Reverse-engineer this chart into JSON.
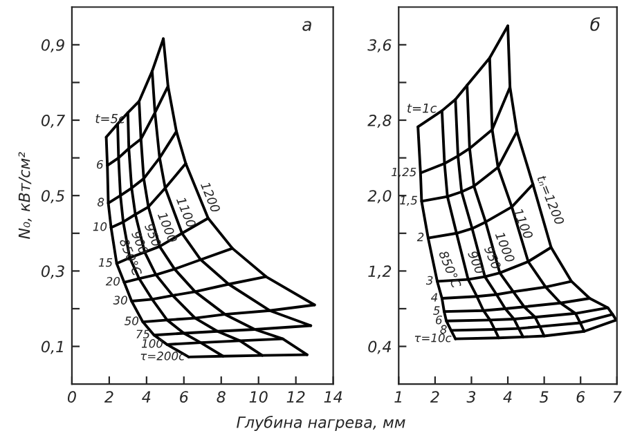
{
  "chart_data": [
    {
      "type": "line",
      "xlabel": "Глубина нагрева, мм",
      "ylabel": "N₀, кВт/см²",
      "xlim": [
        0,
        14
      ],
      "ylim": [
        0,
        1.0
      ],
      "xticks": [
        0,
        2,
        4,
        6,
        8,
        10,
        12,
        14
      ],
      "yticks": [
        {
          "value": 0.1,
          "label": "0,1"
        },
        {
          "value": 0.2,
          "label": null
        },
        {
          "value": 0.3,
          "label": "0,3"
        },
        {
          "value": 0.4,
          "label": null
        },
        {
          "value": 0.5,
          "label": "0,5"
        },
        {
          "value": 0.6,
          "label": null
        },
        {
          "value": 0.7,
          "label": "0,7"
        },
        {
          "value": 0.8,
          "label": null
        },
        {
          "value": 0.9,
          "label": "0,9"
        }
      ],
      "grid": false,
      "line_style": "solid",
      "marker": "none",
      "annotations": [
        "а",
        {
          "text": "850°C",
          "x": 2.25,
          "y": 0.37
        },
        {
          "text": "900",
          "x": 2.9,
          "y": 0.39
        },
        {
          "text": "950",
          "x": 3.6,
          "y": 0.41
        },
        {
          "text": "1000",
          "x": 4.3,
          "y": 0.44
        },
        {
          "text": "1100",
          "x": 5.3,
          "y": 0.48
        },
        {
          "text": "1200",
          "x": 6.6,
          "y": 0.52
        }
      ],
      "series": [
        {
          "color": "#000000",
          "x": [
            1.84,
            1.9,
            1.95,
            2.1,
            2.4,
            2.8,
            3.2,
            3.8,
            4.4,
            5.1,
            6.26
          ],
          "values": [
            0.655,
            0.58,
            0.48,
            0.415,
            0.32,
            0.27,
            0.22,
            0.165,
            0.13,
            0.105,
            0.072
          ]
        },
        {
          "color": "#000000",
          "x": [
            2.45,
            2.5,
            2.6,
            2.75,
            3.1,
            3.6,
            4.3,
            5.1,
            6.0,
            6.9,
            8.1
          ],
          "values": [
            0.69,
            0.6,
            0.5,
            0.43,
            0.335,
            0.28,
            0.225,
            0.17,
            0.135,
            0.11,
            0.074
          ]
        },
        {
          "color": "#000000",
          "x": [
            3.0,
            3.05,
            3.2,
            3.4,
            3.9,
            4.5,
            5.4,
            6.6,
            7.8,
            9.0,
            10.2
          ],
          "values": [
            0.72,
            0.625,
            0.52,
            0.45,
            0.35,
            0.29,
            0.235,
            0.175,
            0.14,
            0.115,
            0.076
          ]
        },
        {
          "color": "#000000",
          "x": [
            3.6,
            3.7,
            3.85,
            4.1,
            4.7,
            5.5,
            6.6,
            8.2,
            9.8,
            11.3,
            12.6
          ],
          "values": [
            0.75,
            0.65,
            0.545,
            0.47,
            0.365,
            0.305,
            0.245,
            0.185,
            0.145,
            0.12,
            0.078
          ]
        },
        {
          "color": "#000000",
          "x": [
            4.3,
            4.45,
            4.7,
            5.0,
            5.9,
            6.9,
            8.4,
            10.6,
            12.8
          ],
          "values": [
            0.83,
            0.72,
            0.6,
            0.52,
            0.4,
            0.33,
            0.265,
            0.195,
            0.155
          ]
        },
        {
          "color": "#000000",
          "x": [
            4.9,
            5.15,
            5.6,
            6.1,
            7.3,
            8.6,
            10.4,
            13.0
          ],
          "values": [
            0.916,
            0.79,
            0.67,
            0.585,
            0.44,
            0.36,
            0.285,
            0.21
          ]
        },
        {
          "name": "t=5c",
          "color": "#000000",
          "x": [
            1.84,
            2.45,
            3.0,
            3.6,
            4.3,
            4.9
          ],
          "values": [
            0.655,
            0.69,
            0.72,
            0.75,
            0.83,
            0.916
          ]
        },
        {
          "name": "6",
          "color": "#000000",
          "x": [
            1.9,
            2.5,
            3.05,
            3.7,
            4.45,
            5.15
          ],
          "values": [
            0.58,
            0.6,
            0.625,
            0.65,
            0.72,
            0.79
          ]
        },
        {
          "name": "8",
          "color": "#000000",
          "x": [
            1.95,
            2.6,
            3.2,
            3.85,
            4.7,
            5.6
          ],
          "values": [
            0.48,
            0.5,
            0.52,
            0.545,
            0.6,
            0.67
          ]
        },
        {
          "name": "10",
          "color": "#000000",
          "x": [
            2.1,
            2.75,
            3.4,
            4.1,
            5.0,
            6.1
          ],
          "values": [
            0.415,
            0.43,
            0.45,
            0.47,
            0.52,
            0.585
          ]
        },
        {
          "name": "15",
          "color": "#000000",
          "x": [
            2.4,
            3.1,
            3.9,
            4.7,
            5.9,
            7.3
          ],
          "values": [
            0.32,
            0.335,
            0.35,
            0.365,
            0.4,
            0.44
          ]
        },
        {
          "name": "20",
          "color": "#000000",
          "x": [
            2.8,
            3.6,
            4.5,
            5.5,
            6.9,
            8.6
          ],
          "values": [
            0.27,
            0.28,
            0.29,
            0.305,
            0.33,
            0.36
          ]
        },
        {
          "name": "30",
          "color": "#000000",
          "x": [
            3.2,
            4.3,
            5.4,
            6.6,
            8.4,
            10.4
          ],
          "values": [
            0.22,
            0.225,
            0.235,
            0.245,
            0.265,
            0.285
          ]
        },
        {
          "name": "50",
          "color": "#000000",
          "x": [
            3.8,
            5.1,
            6.6,
            8.2,
            10.6,
            13.0
          ],
          "values": [
            0.165,
            0.17,
            0.175,
            0.185,
            0.195,
            0.21
          ]
        },
        {
          "name": "75",
          "color": "#000000",
          "x": [
            4.4,
            6.0,
            7.8,
            9.8,
            12.8
          ],
          "values": [
            0.13,
            0.135,
            0.14,
            0.145,
            0.155
          ]
        },
        {
          "name": "100",
          "color": "#000000",
          "x": [
            5.1,
            6.9,
            9.0,
            11.3
          ],
          "values": [
            0.105,
            0.11,
            0.115,
            0.12
          ]
        },
        {
          "name": "τ=200c",
          "color": "#000000",
          "x": [
            6.26,
            8.1,
            10.2,
            12.6
          ],
          "values": [
            0.072,
            0.074,
            0.076,
            0.078
          ]
        }
      ]
    },
    {
      "type": "line",
      "xlim": [
        1,
        7
      ],
      "ylim": [
        0,
        4.0
      ],
      "xticks": [
        1,
        2,
        3,
        4,
        5,
        6,
        7
      ],
      "yticks": [
        {
          "value": 0.4,
          "label": "0,4"
        },
        {
          "value": 0.8,
          "label": null
        },
        {
          "value": 1.2,
          "label": "1,2"
        },
        {
          "value": 1.6,
          "label": null
        },
        {
          "value": 2.0,
          "label": "2,0"
        },
        {
          "value": 2.4,
          "label": null
        },
        {
          "value": 2.8,
          "label": "2,8"
        },
        {
          "value": 3.2,
          "label": null
        },
        {
          "value": 3.6,
          "label": "3,6"
        }
      ],
      "grid": false,
      "line_style": "solid",
      "marker": "none",
      "annotations": [
        "б",
        {
          "text": "850°C",
          "x": 1.95,
          "y": 1.35
        },
        {
          "text": "900",
          "x": 2.75,
          "y": 1.35
        },
        {
          "text": "950",
          "x": 3.2,
          "y": 1.4
        },
        {
          "text": "1000",
          "x": 3.5,
          "y": 1.55
        },
        {
          "text": "1100",
          "x": 4.0,
          "y": 1.8
        },
        {
          "text": "tₙ=1200",
          "x": 4.65,
          "y": 2.15
        }
      ],
      "series": [
        {
          "color": "#000000",
          "x": [
            1.53,
            1.6,
            1.63,
            1.81,
            2.06,
            2.19,
            2.25,
            2.31,
            2.44,
            2.56
          ],
          "values": [
            2.73,
            2.24,
            1.94,
            1.55,
            1.09,
            0.91,
            0.77,
            0.67,
            0.57,
            0.48
          ]
        },
        {
          "color": "#000000",
          "x": [
            2.19,
            2.26,
            2.34,
            2.59,
            2.91,
            3.15,
            3.33,
            3.51,
            3.64,
            3.75
          ],
          "values": [
            2.9,
            2.34,
            1.99,
            1.6,
            1.11,
            0.93,
            0.78,
            0.68,
            0.58,
            0.49
          ]
        },
        {
          "color": "#000000",
          "x": [
            2.56,
            2.63,
            2.73,
            3.02,
            3.37,
            3.69,
            3.93,
            4.17,
            4.3,
            4.42
          ],
          "values": [
            3.02,
            2.42,
            2.04,
            1.65,
            1.14,
            0.95,
            0.8,
            0.69,
            0.59,
            0.5
          ]
        },
        {
          "color": "#000000",
          "x": [
            2.88,
            2.95,
            3.07,
            3.39,
            3.78,
            4.15,
            4.45,
            4.75,
            4.88,
            5.0
          ],
          "values": [
            3.17,
            2.5,
            2.1,
            1.72,
            1.18,
            0.98,
            0.82,
            0.71,
            0.61,
            0.51
          ]
        },
        {
          "color": "#000000",
          "x": [
            3.5,
            3.57,
            3.73,
            4.11,
            4.56,
            5.04,
            5.45,
            5.86,
            5.99,
            6.1
          ],
          "values": [
            3.46,
            2.7,
            2.3,
            1.88,
            1.3,
            1.03,
            0.86,
            0.75,
            0.65,
            0.56
          ]
        },
        {
          "color": "#000000",
          "x": [
            4.0,
            4.06,
            4.25,
            4.69,
            5.19,
            5.75,
            6.25,
            6.75,
            6.88,
            6.98
          ],
          "values": [
            3.8,
            3.15,
            2.68,
            2.12,
            1.45,
            1.09,
            0.91,
            0.81,
            0.74,
            0.68
          ]
        },
        {
          "name": "t=1c",
          "color": "#000000",
          "x": [
            1.53,
            2.19,
            2.56,
            2.88,
            3.5,
            4.0
          ],
          "values": [
            2.73,
            2.9,
            3.02,
            3.17,
            3.46,
            3.8
          ]
        },
        {
          "name": "1,25",
          "color": "#000000",
          "x": [
            1.6,
            2.26,
            2.63,
            2.95,
            3.57,
            4.06
          ],
          "values": [
            2.24,
            2.34,
            2.42,
            2.5,
            2.7,
            3.15
          ]
        },
        {
          "name": "1,5",
          "color": "#000000",
          "x": [
            1.63,
            2.34,
            2.73,
            3.07,
            3.73,
            4.25
          ],
          "values": [
            1.94,
            1.99,
            2.04,
            2.1,
            2.3,
            2.68
          ]
        },
        {
          "name": "2",
          "color": "#000000",
          "x": [
            1.81,
            2.59,
            3.02,
            3.39,
            4.11,
            4.69
          ],
          "values": [
            1.55,
            1.6,
            1.65,
            1.72,
            1.88,
            2.12
          ]
        },
        {
          "name": "3",
          "color": "#000000",
          "x": [
            2.06,
            2.91,
            3.37,
            3.78,
            4.56,
            5.19
          ],
          "values": [
            1.09,
            1.11,
            1.14,
            1.18,
            1.3,
            1.45
          ]
        },
        {
          "name": "4",
          "color": "#000000",
          "x": [
            2.19,
            3.15,
            3.69,
            4.15,
            5.04,
            5.75
          ],
          "values": [
            0.91,
            0.93,
            0.95,
            0.98,
            1.03,
            1.09
          ]
        },
        {
          "name": "5",
          "color": "#000000",
          "x": [
            2.25,
            3.33,
            3.93,
            4.45,
            5.45,
            6.25
          ],
          "values": [
            0.77,
            0.78,
            0.8,
            0.82,
            0.86,
            0.91
          ]
        },
        {
          "name": "6",
          "color": "#000000",
          "x": [
            2.31,
            3.51,
            4.17,
            4.75,
            5.86,
            6.75
          ],
          "values": [
            0.67,
            0.68,
            0.69,
            0.71,
            0.75,
            0.81
          ]
        },
        {
          "name": "8",
          "color": "#000000",
          "x": [
            2.44,
            3.64,
            4.3,
            4.88,
            5.99,
            6.88
          ],
          "values": [
            0.57,
            0.58,
            0.59,
            0.61,
            0.65,
            0.74
          ]
        },
        {
          "name": "τ=10c",
          "color": "#000000",
          "x": [
            2.56,
            3.75,
            4.42,
            5.0,
            6.1,
            6.98
          ],
          "values": [
            0.48,
            0.49,
            0.5,
            0.51,
            0.56,
            0.68
          ]
        }
      ]
    }
  ]
}
